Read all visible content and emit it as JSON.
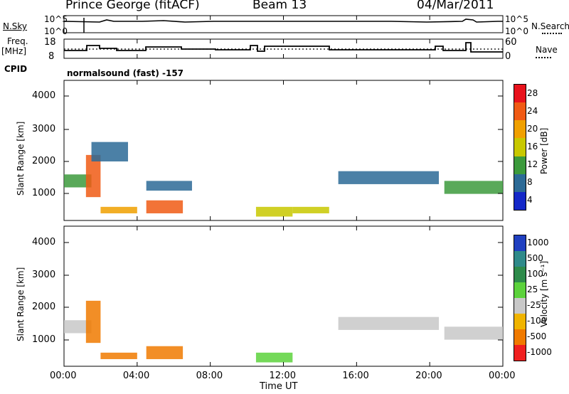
{
  "header": {
    "station": "Prince George (fitACF)",
    "beam": "Beam 13",
    "date": "04/Mar/2011"
  },
  "top_panel": {
    "left_label": "N.Sky",
    "right_label": "N.Search",
    "left_ticks": [
      "10^5",
      "10^0"
    ],
    "right_ticks": [
      "10^5",
      "10^0"
    ]
  },
  "freq_panel": {
    "left_label_line1": "Freq.",
    "left_label_line2": "[MHz]",
    "left_ticks": [
      "18",
      "8"
    ],
    "right_ticks": [
      "60",
      "0"
    ],
    "right_label": "Nave"
  },
  "cpid": {
    "label": "CPID",
    "program": "normalsound (fast) -157"
  },
  "power_panel": {
    "ylabel": "Slant Range [km]",
    "yticks": [
      "4000",
      "3000",
      "2000",
      "1000"
    ],
    "colorbar_label": "Power [dB]",
    "colorbar_ticks": [
      "28",
      "24",
      "20",
      "16",
      "12",
      "8",
      "4"
    ],
    "colors": [
      "#e8121c",
      "#f05a14",
      "#f0a000",
      "#c8c800",
      "#3c9a3c",
      "#2c6a96",
      "#1428c8"
    ]
  },
  "velocity_panel": {
    "ylabel": "Slant Range [km]",
    "yticks": [
      "4000",
      "3000",
      "2000",
      "1000"
    ],
    "colorbar_label": "Velocity [m s⁻¹]",
    "colorbar_ticks": [
      "1000",
      "500",
      "100",
      "25",
      "-25",
      "-100",
      "-500",
      "-1000"
    ],
    "colors": [
      "#2040c0",
      "#2f8a8a",
      "#2e8b4b",
      "#5cd23c",
      "#c8c8c8",
      "#f0b400",
      "#f07a00",
      "#f02020"
    ]
  },
  "x_axis": {
    "ticks": [
      "00:00",
      "04:00",
      "08:00",
      "12:00",
      "16:00",
      "20:00",
      "00:00"
    ],
    "label": "Time UT"
  },
  "chart_data": {
    "type": "heatmap",
    "x_unit": "hours UT",
    "xlim": [
      0,
      24
    ],
    "frequency_mhz": [
      {
        "t": 0,
        "v": 11
      },
      {
        "t": 1.3,
        "v": 14
      },
      {
        "t": 2.0,
        "v": 12.5
      },
      {
        "t": 3.3,
        "v": 11
      },
      {
        "t": 4.5,
        "v": 13
      },
      {
        "t": 6.3,
        "v": 12
      },
      {
        "t": 8.0,
        "v": 11
      },
      {
        "t": 10.0,
        "v": 12
      },
      {
        "t": 10.3,
        "v": 14
      },
      {
        "t": 11.0,
        "v": 11
      },
      {
        "t": 11.7,
        "v": 13
      },
      {
        "t": 14.7,
        "v": 11
      },
      {
        "t": 20.8,
        "v": 14
      },
      {
        "t": 21.6,
        "v": 11
      },
      {
        "t": 22.6,
        "v": 16
      },
      {
        "t": 22.9,
        "v": 11
      },
      {
        "t": 24,
        "v": 11
      }
    ],
    "power_db_regions": [
      {
        "t0": 0.0,
        "t1": 1.5,
        "r0": 1200,
        "r1": 1600,
        "power_db": 14
      },
      {
        "t0": 1.2,
        "t1": 2.0,
        "r0": 900,
        "r1": 2200,
        "power_db": 26
      },
      {
        "t0": 1.5,
        "t1": 3.5,
        "r0": 2000,
        "r1": 2600,
        "power_db": 8
      },
      {
        "t0": 2.0,
        "t1": 4.0,
        "r0": 400,
        "r1": 600,
        "power_db": 20
      },
      {
        "t0": 4.5,
        "t1": 6.5,
        "r0": 400,
        "r1": 800,
        "power_db": 24
      },
      {
        "t0": 4.5,
        "t1": 7.0,
        "r0": 1100,
        "r1": 1400,
        "power_db": 10
      },
      {
        "t0": 10.5,
        "t1": 12.5,
        "r0": 300,
        "r1": 600,
        "power_db": 18
      },
      {
        "t0": 12.5,
        "t1": 14.5,
        "r0": 400,
        "r1": 600,
        "power_db": 16
      },
      {
        "t0": 15.0,
        "t1": 20.5,
        "r0": 1300,
        "r1": 1700,
        "power_db": 10
      },
      {
        "t0": 20.8,
        "t1": 24.0,
        "r0": 1000,
        "r1": 1400,
        "power_db": 14
      }
    ],
    "velocity_ms_regions": [
      {
        "t0": 0.0,
        "t1": 1.5,
        "r0": 1200,
        "r1": 1600,
        "velocity_ms": 0
      },
      {
        "t0": 1.2,
        "t1": 2.0,
        "r0": 900,
        "r1": 2200,
        "velocity_ms": -300
      },
      {
        "t0": 2.0,
        "t1": 4.0,
        "r0": 400,
        "r1": 600,
        "velocity_ms": -150
      },
      {
        "t0": 4.5,
        "t1": 6.5,
        "r0": 400,
        "r1": 800,
        "velocity_ms": -200
      },
      {
        "t0": 10.5,
        "t1": 12.5,
        "r0": 300,
        "r1": 600,
        "velocity_ms": 60
      },
      {
        "t0": 15.0,
        "t1": 20.5,
        "r0": 1300,
        "r1": 1700,
        "velocity_ms": 0
      },
      {
        "t0": 20.8,
        "t1": 24.0,
        "r0": 1000,
        "r1": 1400,
        "velocity_ms": 0
      }
    ],
    "ylim_km": [
      180,
      4500
    ]
  }
}
